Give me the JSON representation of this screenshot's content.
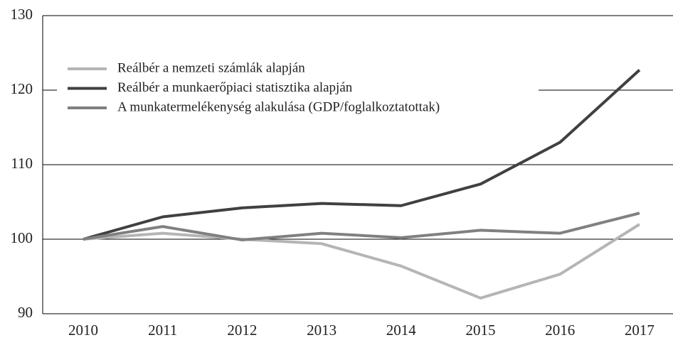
{
  "chart_data": {
    "type": "line",
    "categories": [
      "2010",
      "2011",
      "2012",
      "2013",
      "2014",
      "2015",
      "2016",
      "2017"
    ],
    "series": [
      {
        "name": "Reálbér a nemzeti számlák alapján",
        "color": "#b5b5b5",
        "values": [
          100,
          100.8,
          100,
          99.4,
          96.4,
          92.1,
          95.3,
          102
        ]
      },
      {
        "name": "Reálbér a munkaerőpiaci statisztika alapján",
        "color": "#404040",
        "values": [
          100,
          103,
          104.2,
          104.8,
          104.5,
          107.4,
          113,
          122.7
        ]
      },
      {
        "name": "A munkatermelékenység alakulása (GDP/foglalkoztatottak)",
        "color": "#808080",
        "values": [
          100,
          101.7,
          99.9,
          100.8,
          100.2,
          101.2,
          100.8,
          103.5
        ]
      }
    ],
    "ylim": [
      90,
      130
    ],
    "yticks": [
      90,
      100,
      110,
      120,
      130
    ],
    "grid": true,
    "legend": "upper left"
  }
}
